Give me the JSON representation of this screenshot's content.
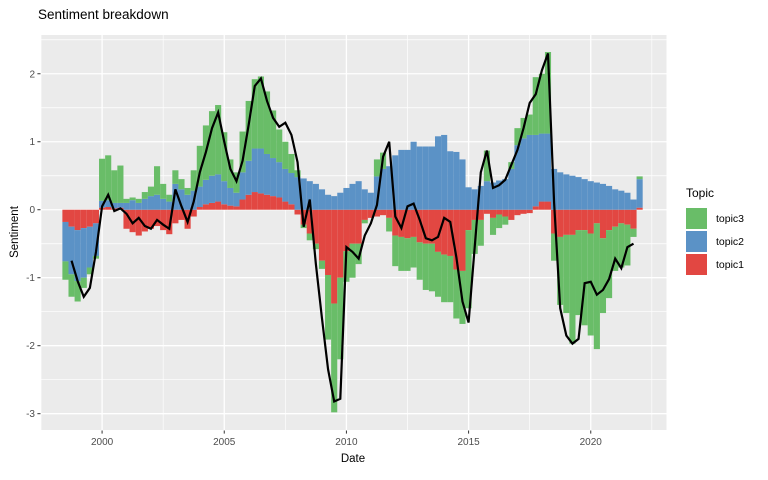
{
  "title": "Sentiment breakdown",
  "axes": {
    "x_label": "Date",
    "y_label": "Sentiment"
  },
  "legend": {
    "title": "Topic",
    "entries": [
      {
        "label": "topic3",
        "color": "#69bd68"
      },
      {
        "label": "topic2",
        "color": "#5b92c6"
      },
      {
        "label": "topic1",
        "color": "#e24742"
      }
    ]
  },
  "colors": {
    "panel_background": "#ebebeb",
    "gridline": "#ffffff",
    "tick_mark": "#333333",
    "tick_label": "#4d4d4d",
    "line": "#000000"
  },
  "chart_data": {
    "type": "bar",
    "subtype": "stacked-bar-with-line-overlay",
    "title": "Sentiment breakdown",
    "xlabel": "Date",
    "ylabel": "Sentiment",
    "x_ticks": [
      2000,
      2005,
      2010,
      2015,
      2020
    ],
    "y_ticks": [
      2,
      1,
      0,
      -1,
      -2,
      -3
    ],
    "xlim": [
      1997.5,
      2023.1
    ],
    "ylim": [
      -3.24,
      2.57
    ],
    "grid": true,
    "legend_position": "right",
    "bar_x_start": 1998.5,
    "bar_x_step": 0.25,
    "series": [
      {
        "name": "topic1",
        "color": "#e24742",
        "values": [
          -0.18,
          -0.25,
          -0.3,
          -0.27,
          -0.25,
          -0.2,
          0.03,
          0.04,
          0.02,
          0.03,
          -0.28,
          -0.33,
          -0.38,
          -0.32,
          -0.28,
          -0.24,
          -0.3,
          -0.36,
          -0.2,
          -0.15,
          -0.28,
          -0.1,
          0.04,
          0.08,
          0.1,
          0.12,
          0.08,
          0.06,
          0.05,
          0.15,
          0.22,
          0.26,
          0.24,
          0.22,
          0.2,
          0.18,
          0.12,
          0.08,
          -0.07,
          -0.22,
          -0.35,
          -0.5,
          -0.75,
          -0.96,
          -1.38,
          -1.0,
          -0.61,
          -0.5,
          -0.5,
          -0.15,
          -0.12,
          -0.1,
          -0.08,
          -0.12,
          -0.38,
          -0.4,
          -0.42,
          -0.4,
          -0.48,
          -0.5,
          -0.5,
          -0.62,
          -0.66,
          -0.68,
          -0.88,
          -0.9,
          -0.3,
          -0.15,
          -0.15,
          -0.06,
          -0.12,
          -0.07,
          -0.1,
          -0.15,
          -0.08,
          -0.06,
          -0.05,
          0.05,
          0.12,
          0.12,
          -0.35,
          -0.4,
          -0.37,
          -0.37,
          -0.3,
          -0.3,
          -0.35,
          -0.2,
          -0.42,
          -0.3,
          -0.25,
          -0.2,
          -0.22,
          -0.28,
          0.03
        ]
      },
      {
        "name": "topic2",
        "color": "#5b92c6",
        "values": [
          -0.58,
          -0.7,
          -0.75,
          -0.73,
          -0.6,
          -0.48,
          0.1,
          0.1,
          0.08,
          0.07,
          0.1,
          0.14,
          0.1,
          0.16,
          0.2,
          0.22,
          0.16,
          0.12,
          0.38,
          0.3,
          0.22,
          0.28,
          0.3,
          0.36,
          0.4,
          0.4,
          0.34,
          0.26,
          0.2,
          0.4,
          0.5,
          0.64,
          0.66,
          0.6,
          0.56,
          0.52,
          0.48,
          0.46,
          0.48,
          0.46,
          0.42,
          0.38,
          0.3,
          0.22,
          0.2,
          0.25,
          0.32,
          0.38,
          0.42,
          0.3,
          0.25,
          0.49,
          0.6,
          0.64,
          0.8,
          0.88,
          0.88,
          1.0,
          0.93,
          0.93,
          0.93,
          1.08,
          1.1,
          0.86,
          0.85,
          0.74,
          0.33,
          0.3,
          0.35,
          0.42,
          0.4,
          0.43,
          0.45,
          0.6,
          0.95,
          1.05,
          1.1,
          1.05,
          1.0,
          1.0,
          0.6,
          0.55,
          0.52,
          0.5,
          0.48,
          0.45,
          0.42,
          0.4,
          0.38,
          0.35,
          0.3,
          0.28,
          0.25,
          0.15,
          0.42
        ]
      },
      {
        "name": "topic3",
        "color": "#69bd68",
        "values": [
          -0.27,
          -0.33,
          -0.3,
          -0.15,
          -0.1,
          -0.04,
          0.62,
          0.66,
          0.48,
          0.55,
          0.06,
          0.04,
          0.06,
          0.1,
          0.14,
          0.42,
          0.22,
          0.1,
          0.2,
          0.15,
          0.1,
          0.3,
          0.6,
          0.8,
          0.95,
          1.02,
          0.72,
          0.42,
          0.3,
          0.6,
          0.88,
          1.02,
          1.06,
          0.92,
          0.7,
          0.48,
          0.4,
          0.28,
          0.1,
          -0.05,
          -0.1,
          -0.08,
          -0.12,
          -0.95,
          -1.6,
          -1.2,
          -0.45,
          -0.5,
          -0.3,
          -0.05,
          0.0,
          0.25,
          0.24,
          -0.2,
          -0.45,
          -0.5,
          -0.48,
          -0.45,
          -0.55,
          -0.68,
          -0.7,
          -0.66,
          -0.7,
          -0.68,
          -0.72,
          -0.78,
          -1.15,
          -0.5,
          -0.38,
          0.45,
          -0.25,
          -0.2,
          -0.12,
          0.1,
          0.25,
          0.3,
          0.3,
          0.85,
          0.88,
          1.2,
          -0.4,
          -1.0,
          -1.15,
          -1.6,
          -1.25,
          -1.4,
          -1.5,
          -1.85,
          -1.1,
          -1.0,
          -0.65,
          -0.65,
          -0.6,
          -0.12,
          0.04
        ]
      }
    ],
    "line": {
      "name": "sentiment",
      "color": "#000000",
      "x_start": 1998.75,
      "x_step": 0.25,
      "values": [
        -0.75,
        -1.05,
        -1.28,
        -1.15,
        -0.62,
        0.05,
        0.22,
        -0.02,
        0.02,
        -0.06,
        -0.2,
        -0.12,
        -0.24,
        -0.28,
        -0.15,
        -0.22,
        -0.28,
        0.3,
        0.05,
        -0.18,
        0.12,
        0.55,
        0.85,
        1.2,
        1.43,
        1.0,
        0.6,
        0.42,
        0.72,
        1.25,
        1.82,
        1.93,
        1.6,
        1.35,
        1.22,
        1.28,
        1.1,
        0.7,
        -0.25,
        0.15,
        -0.8,
        -1.6,
        -2.35,
        -2.82,
        -2.78,
        -0.55,
        -0.62,
        -0.72,
        -0.38,
        -0.2,
        0.07,
        0.78,
        1.0,
        -0.1,
        -0.27,
        0.05,
        0.09,
        -0.15,
        -0.42,
        -0.45,
        -0.4,
        -0.12,
        -0.18,
        -0.7,
        -1.35,
        -1.66,
        -0.55,
        0.55,
        0.87,
        0.32,
        0.36,
        0.44,
        0.66,
        0.88,
        1.2,
        1.57,
        1.7,
        2.05,
        2.3,
        0.1,
        -1.45,
        -1.85,
        -1.97,
        -1.9,
        -1.08,
        -1.06,
        -1.25,
        -1.18,
        -1.02,
        -0.72,
        -0.86,
        -0.55,
        -0.5
      ]
    }
  }
}
